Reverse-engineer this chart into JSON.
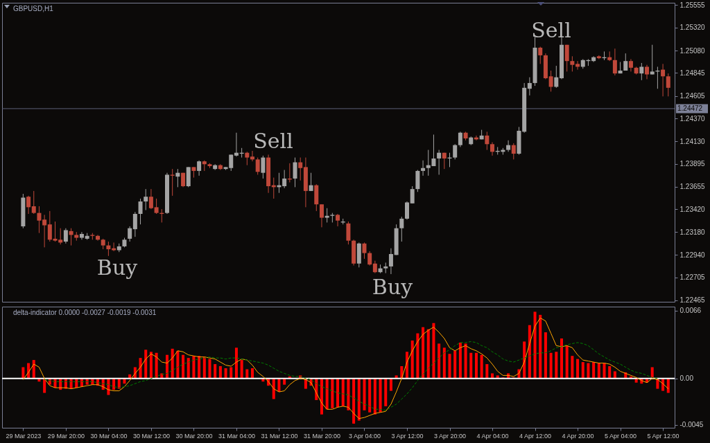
{
  "chart_data": [
    {
      "type": "candlestick",
      "title": "GBPUSD,H1",
      "ohlc": [
        [
          1.2324,
          1.2358,
          1.2322,
          1.2354
        ],
        [
          1.2355,
          1.2356,
          1.2337,
          1.2344
        ],
        [
          1.2345,
          1.2361,
          1.2337,
          1.2338
        ],
        [
          1.2338,
          1.2345,
          1.2317,
          1.233
        ],
        [
          1.2331,
          1.2336,
          1.2302,
          1.2325
        ],
        [
          1.2326,
          1.234,
          1.2308,
          1.231
        ],
        [
          1.2311,
          1.2329,
          1.2308,
          1.2309
        ],
        [
          1.231,
          1.2322,
          1.2305,
          1.2307
        ],
        [
          1.2308,
          1.2322,
          1.2306,
          1.232
        ],
        [
          1.2319,
          1.2322,
          1.2304,
          1.2315
        ],
        [
          1.2315,
          1.2318,
          1.2309,
          1.2312
        ],
        [
          1.2312,
          1.2318,
          1.231,
          1.2316
        ],
        [
          1.2311,
          1.2317,
          1.231,
          1.2314
        ],
        [
          1.2315,
          1.2317,
          1.231,
          1.2314
        ],
        [
          1.2314,
          1.2315,
          1.2309,
          1.231
        ],
        [
          1.231,
          1.2311,
          1.23,
          1.2304
        ],
        [
          1.2304,
          1.2308,
          1.2293,
          1.23
        ],
        [
          1.2301,
          1.2307,
          1.2298,
          1.2299
        ],
        [
          1.2299,
          1.2306,
          1.2297,
          1.2303
        ],
        [
          1.2303,
          1.2312,
          1.2302,
          1.231
        ],
        [
          1.2311,
          1.2324,
          1.2308,
          1.2322
        ],
        [
          1.2321,
          1.2339,
          1.2313,
          1.2337
        ],
        [
          1.2337,
          1.2353,
          1.2326,
          1.235
        ],
        [
          1.235,
          1.2363,
          1.2341,
          1.2355
        ],
        [
          1.2355,
          1.2363,
          1.2342,
          1.2343
        ],
        [
          1.2344,
          1.2353,
          1.2337,
          1.2338
        ],
        [
          1.2338,
          1.2342,
          1.2328,
          1.2337
        ],
        [
          1.2338,
          1.238,
          1.2337,
          1.2378
        ],
        [
          1.2378,
          1.2384,
          1.2356,
          1.2377
        ],
        [
          1.2376,
          1.2384,
          1.2365,
          1.238
        ],
        [
          1.238,
          1.238,
          1.2365,
          1.2366
        ],
        [
          1.2366,
          1.2386,
          1.2365,
          1.2386
        ],
        [
          1.2386,
          1.2386,
          1.2375,
          1.2382
        ],
        [
          1.2382,
          1.2393,
          1.2377,
          1.2392
        ],
        [
          1.2392,
          1.2393,
          1.2382,
          1.2389
        ],
        [
          1.2389,
          1.239,
          1.2385,
          1.2387
        ],
        [
          1.2384,
          1.2389,
          1.2383,
          1.2388
        ],
        [
          1.2388,
          1.2389,
          1.2383,
          1.2384
        ],
        [
          1.2384,
          1.2386,
          1.2383,
          1.2386
        ],
        [
          1.2385,
          1.2399,
          1.2382,
          1.2399
        ],
        [
          1.2398,
          1.2422,
          1.2397,
          1.2401
        ],
        [
          1.24,
          1.2406,
          1.2396,
          1.2401
        ],
        [
          1.2401,
          1.2402,
          1.2388,
          1.2396
        ],
        [
          1.2397,
          1.2403,
          1.2392,
          1.2394
        ],
        [
          1.2394,
          1.2396,
          1.2378,
          1.2381
        ],
        [
          1.238,
          1.2398,
          1.2374,
          1.2396
        ],
        [
          1.2396,
          1.2399,
          1.2359,
          1.2366
        ],
        [
          1.2367,
          1.2375,
          1.2353,
          1.2365
        ],
        [
          1.2365,
          1.238,
          1.2359,
          1.2367
        ],
        [
          1.2366,
          1.2383,
          1.2364,
          1.2374
        ],
        [
          1.2374,
          1.239,
          1.237,
          1.2373
        ],
        [
          1.2374,
          1.2396,
          1.2365,
          1.2391
        ],
        [
          1.2391,
          1.2396,
          1.2372,
          1.2385
        ],
        [
          1.2386,
          1.2396,
          1.2344,
          1.2361
        ],
        [
          1.2361,
          1.238,
          1.2361,
          1.2367
        ],
        [
          1.2367,
          1.2368,
          1.234,
          1.2347
        ],
        [
          1.2347,
          1.2347,
          1.2323,
          1.2333
        ],
        [
          1.2333,
          1.2343,
          1.2328,
          1.2335
        ],
        [
          1.2335,
          1.2338,
          1.2328,
          1.2336
        ],
        [
          1.2336,
          1.2337,
          1.2324,
          1.233
        ],
        [
          1.2328,
          1.2332,
          1.2326,
          1.2329
        ],
        [
          1.2327,
          1.2329,
          1.2305,
          1.2309
        ],
        [
          1.2309,
          1.231,
          1.2283,
          1.2285
        ],
        [
          1.2285,
          1.2307,
          1.2281,
          1.2306
        ],
        [
          1.2306,
          1.2307,
          1.229,
          1.2296
        ],
        [
          1.2296,
          1.2298,
          1.2283,
          1.2284
        ],
        [
          1.2285,
          1.2288,
          1.2275,
          1.2276
        ],
        [
          1.2276,
          1.2284,
          1.2275,
          1.228
        ],
        [
          1.228,
          1.2286,
          1.2275,
          1.2282
        ],
        [
          1.2282,
          1.2301,
          1.2274,
          1.2295
        ],
        [
          1.2294,
          1.2326,
          1.2294,
          1.2322
        ],
        [
          1.2322,
          1.2334,
          1.2308,
          1.2332
        ],
        [
          1.2332,
          1.235,
          1.2331,
          1.2349
        ],
        [
          1.2348,
          1.2366,
          1.2348,
          1.2363
        ],
        [
          1.2363,
          1.2383,
          1.236,
          1.2382
        ],
        [
          1.2382,
          1.2393,
          1.2377,
          1.2385
        ],
        [
          1.2385,
          1.2404,
          1.2377,
          1.2388
        ],
        [
          1.2387,
          1.242,
          1.2387,
          1.2395
        ],
        [
          1.2395,
          1.2404,
          1.2378,
          1.2401
        ],
        [
          1.2401,
          1.2401,
          1.2384,
          1.2395
        ],
        [
          1.2395,
          1.2401,
          1.2386,
          1.2396
        ],
        [
          1.2396,
          1.241,
          1.2394,
          1.2409
        ],
        [
          1.2409,
          1.2423,
          1.2407,
          1.2422
        ],
        [
          1.2422,
          1.2423,
          1.2414,
          1.2416
        ],
        [
          1.241,
          1.2418,
          1.2409,
          1.2417
        ],
        [
          1.2417,
          1.2419,
          1.2414,
          1.2415
        ],
        [
          1.2415,
          1.2425,
          1.2415,
          1.2419
        ],
        [
          1.2419,
          1.2423,
          1.2404,
          1.241
        ],
        [
          1.241,
          1.2412,
          1.2398,
          1.2402
        ],
        [
          1.2402,
          1.2407,
          1.2399,
          1.2403
        ],
        [
          1.2402,
          1.2406,
          1.2399,
          1.2404
        ],
        [
          1.2404,
          1.2414,
          1.2402,
          1.2409
        ],
        [
          1.2409,
          1.2411,
          1.2394,
          1.24
        ],
        [
          1.24,
          1.2428,
          1.2399,
          1.2424
        ],
        [
          1.2423,
          1.2474,
          1.2422,
          1.2469
        ],
        [
          1.2468,
          1.248,
          1.2461,
          1.2474
        ],
        [
          1.2474,
          1.2522,
          1.2471,
          1.2511
        ],
        [
          1.2511,
          1.2512,
          1.2494,
          1.2503
        ],
        [
          1.2503,
          1.2505,
          1.2478,
          1.2479
        ],
        [
          1.2481,
          1.2487,
          1.2465,
          1.247
        ],
        [
          1.247,
          1.2492,
          1.2469,
          1.248
        ],
        [
          1.2479,
          1.2522,
          1.2478,
          1.2514
        ],
        [
          1.2514,
          1.2514,
          1.2486,
          1.2497
        ],
        [
          1.2497,
          1.2502,
          1.2486,
          1.2493
        ],
        [
          1.2494,
          1.2497,
          1.2488,
          1.2491
        ],
        [
          1.2491,
          1.2499,
          1.2489,
          1.2498
        ],
        [
          1.2497,
          1.2499,
          1.2492,
          1.2498
        ],
        [
          1.2497,
          1.2502,
          1.2496,
          1.2501
        ],
        [
          1.2502,
          1.2503,
          1.2499,
          1.25
        ],
        [
          1.25,
          1.2507,
          1.2498,
          1.2501
        ],
        [
          1.2501,
          1.2507,
          1.2497,
          1.2498
        ],
        [
          1.2498,
          1.251,
          1.2482,
          1.2484
        ],
        [
          1.2484,
          1.2496,
          1.2484,
          1.2487
        ],
        [
          1.2487,
          1.2505,
          1.2487,
          1.2497
        ],
        [
          1.2497,
          1.2499,
          1.2486,
          1.249
        ],
        [
          1.249,
          1.2491,
          1.2483,
          1.2484
        ],
        [
          1.2484,
          1.2495,
          1.2477,
          1.2491
        ],
        [
          1.2491,
          1.2493,
          1.2478,
          1.2483
        ],
        [
          1.2483,
          1.2514,
          1.2483,
          1.2486
        ],
        [
          1.2486,
          1.2491,
          1.2468,
          1.2487
        ],
        [
          1.2488,
          1.2494,
          1.246,
          1.2481
        ],
        [
          1.2481,
          1.2484,
          1.246,
          1.2469
        ]
      ],
      "colors": [
        "#a4a4a4",
        "#c0483a",
        "#c0483a",
        "#c0483a",
        "#c0483a",
        "#c0483a",
        "#c0483a",
        "#c0483a",
        "#a4a4a4",
        "#c0483a",
        "#c0483a",
        "#a4a4a4",
        "#a4a4a4",
        "#c0483a",
        "#c0483a",
        "#c0483a",
        "#c0483a",
        "#c0483a",
        "#a4a4a4",
        "#a4a4a4",
        "#a4a4a4",
        "#a4a4a4",
        "#a4a4a4",
        "#a4a4a4",
        "#c0483a",
        "#c0483a",
        "#c0483a",
        "#a4a4a4",
        "#c0483a",
        "#a4a4a4",
        "#c0483a",
        "#a4a4a4",
        "#c0483a",
        "#a4a4a4",
        "#c0483a",
        "#c0483a",
        "#a4a4a4",
        "#c0483a",
        "#a4a4a4",
        "#a4a4a4",
        "#a4a4a4",
        "#a4a4a4",
        "#c0483a",
        "#c0483a",
        "#c0483a",
        "#a4a4a4",
        "#c0483a",
        "#c0483a",
        "#a4a4a4",
        "#a4a4a4",
        "#c0483a",
        "#a4a4a4",
        "#c0483a",
        "#c0483a",
        "#a4a4a4",
        "#c0483a",
        "#c0483a",
        "#a4a4a4",
        "#a4a4a4",
        "#c0483a",
        "#a4a4a4",
        "#c0483a",
        "#c0483a",
        "#a4a4a4",
        "#c0483a",
        "#c0483a",
        "#c0483a",
        "#a4a4a4",
        "#a4a4a4",
        "#a4a4a4",
        "#a4a4a4",
        "#a4a4a4",
        "#a4a4a4",
        "#a4a4a4",
        "#a4a4a4",
        "#a4a4a4",
        "#a4a4a4",
        "#a4a4a4",
        "#a4a4a4",
        "#c0483a",
        "#a4a4a4",
        "#a4a4a4",
        "#a4a4a4",
        "#c0483a",
        "#a4a4a4",
        "#c0483a",
        "#a4a4a4",
        "#c0483a",
        "#c0483a",
        "#a4a4a4",
        "#a4a4a4",
        "#a4a4a4",
        "#c0483a",
        "#a4a4a4",
        "#a4a4a4",
        "#a4a4a4",
        "#a4a4a4",
        "#c0483a",
        "#c0483a",
        "#c0483a",
        "#a4a4a4",
        "#a4a4a4",
        "#c0483a",
        "#c0483a",
        "#c0483a",
        "#a4a4a4",
        "#a4a4a4",
        "#a4a4a4",
        "#c0483a",
        "#a4a4a4",
        "#c0483a",
        "#c0483a",
        "#a4a4a4",
        "#a4a4a4",
        "#c0483a",
        "#c0483a",
        "#a4a4a4",
        "#c0483a",
        "#a4a4a4",
        "#a4a4a4",
        "#c0483a",
        "#c0483a"
      ],
      "ylim": [
        1.2245,
        1.2558
      ],
      "yticks": [
        1.25555,
        {
          "value": 1.2532,
          "label": "1.25320"
        },
        {
          "value": 1.2508,
          "label": "1.25080"
        },
        1.24845,
        1.24605,
        {
          "value": 1.2437,
          "label": "1.24370"
        },
        {
          "value": 1.2413,
          "label": "1.24130"
        },
        1.23895,
        1.23655,
        {
          "value": 1.2342,
          "label": "1.23420"
        },
        {
          "value": 1.2318,
          "label": "1.23180"
        },
        {
          "value": 1.2294,
          "label": "1.22940"
        },
        1.22705,
        1.22465
      ],
      "ref_lines": [
        {
          "axis": "y",
          "value": 1.24472,
          "label": "1.24472",
          "color": "#5c6078"
        }
      ],
      "annotations": [
        "Sell",
        "Sell",
        "Buy",
        "Buy"
      ],
      "tick_labels": "y"
    },
    {
      "type": "bar",
      "title": "delta-indicator 0.0000 -0.0027 -0.0019 -0.0031",
      "categories": [
        "29 Mar 2023",
        null,
        null,
        null,
        null,
        null,
        null,
        null,
        "29 Mar 20:00",
        null,
        null,
        null,
        null,
        null,
        null,
        null,
        "30 Mar 04:00",
        null,
        null,
        null,
        null,
        null,
        null,
        null,
        "30 Mar 12:00",
        null,
        null,
        null,
        null,
        null,
        null,
        null,
        "30 Mar 20:00",
        null,
        null,
        null,
        null,
        null,
        null,
        null,
        "31 Mar 04:00",
        null,
        null,
        null,
        null,
        null,
        null,
        null,
        "31 Mar 12:00",
        null,
        null,
        null,
        null,
        null,
        null,
        null,
        "31 Mar 20:00",
        null,
        null,
        null,
        null,
        null,
        null,
        null,
        "3 Apr 04:00",
        null,
        null,
        null,
        null,
        null,
        null,
        null,
        "3 Apr 12:00",
        null,
        null,
        null,
        null,
        null,
        null,
        null,
        "3 Apr 20:00",
        null,
        null,
        null,
        null,
        null,
        null,
        null,
        "4 Apr 04:00",
        null,
        null,
        null,
        null,
        null,
        null,
        null,
        "4 Apr 12:00",
        null,
        null,
        null,
        null,
        null,
        null,
        null,
        "4 Apr 20:00",
        null,
        null,
        null,
        null,
        null,
        null,
        null,
        "5 Apr 04:00",
        null,
        null,
        null,
        null,
        null,
        null,
        null,
        "5 Apr 12:00",
        null
      ],
      "series": [
        {
          "type": "bar",
          "color": "#ff0000",
          "values": [
            0.0011,
            0.0015,
            0.0018,
            -0.0003,
            -0.0014,
            -0.0006,
            -0.0009,
            -0.0011,
            -0.001,
            -0.001,
            -0.0009,
            -0.0008,
            -0.0006,
            -0.0006,
            -0.0007,
            -0.0011,
            -0.0016,
            -0.0011,
            -0.001,
            -0.0005,
            0.0004,
            0.0011,
            0.002,
            0.0028,
            0.0026,
            0.0025,
            0.0005,
            0.0023,
            0.0029,
            0.0027,
            0.0023,
            0.002,
            0.0022,
            0.0022,
            0.0021,
            0.0019,
            0.0014,
            0.0012,
            0.001,
            0.0011,
            0.003,
            0.0018,
            0.0009,
            0.001,
            null,
            -0.0003,
            -0.0007,
            -0.002,
            -0.0013,
            -0.0006,
            0.0002,
            0.0,
            0.0003,
            -0.001,
            -0.0007,
            -0.0021,
            -0.0035,
            -0.003,
            -0.0029,
            -0.0028,
            -0.0027,
            -0.0031,
            -0.0044,
            -0.0041,
            -0.0031,
            -0.0033,
            -0.0035,
            -0.0033,
            -0.0027,
            -0.0012,
            0.0003,
            0.0012,
            0.0026,
            0.0037,
            0.0044,
            0.005,
            0.0048,
            0.0054,
            0.0034,
            0.003,
            0.0024,
            0.0027,
            0.0035,
            0.0034,
            0.0025,
            0.0025,
            0.0023,
            0.0014,
            0.0005,
            0.0003,
            0.0001,
            0.0005,
            0.0001,
            0.0009,
            0.0036,
            0.0052,
            0.0065,
            0.0062,
            0.0045,
            0.0025,
            0.0026,
            0.0039,
            0.0032,
            0.0022,
            0.0019,
            0.0016,
            0.0015,
            0.0016,
            0.0015,
            0.0015,
            0.0012,
            0.0007,
            0.0,
            0.0006,
            0.0002,
            -0.0004,
            -0.0005,
            -0.0004,
            0.0011,
            -0.001,
            -0.0012,
            -0.0014
          ]
        },
        {
          "type": "line",
          "color": "#ffa500",
          "values": [
            -0.0001,
            0.0006,
            0.0014,
            0.0011,
            0.0,
            -0.0007,
            -0.0009,
            -0.0009,
            -0.0009,
            -0.001,
            -0.0009,
            -0.0008,
            -0.0007,
            -0.0006,
            -0.0006,
            -0.0008,
            -0.0011,
            -0.0012,
            -0.0012,
            -0.0008,
            -0.0002,
            0.0005,
            0.0011,
            0.0019,
            0.0024,
            0.0021,
            0.0016,
            0.0015,
            0.002,
            0.0027,
            0.0026,
            0.0023,
            0.0022,
            0.0021,
            0.0021,
            0.002,
            0.0019,
            0.0016,
            0.0013,
            0.0012,
            0.0016,
            0.0019,
            0.0018,
            0.0013,
            0.0006,
            0.0002,
            -0.0003,
            -0.001,
            -0.0013,
            -0.0012,
            -0.0006,
            -0.0002,
            0.0,
            -0.0001,
            -0.0004,
            -0.0014,
            -0.0024,
            -0.003,
            -0.003,
            -0.0028,
            -0.0027,
            -0.0028,
            -0.0034,
            -0.0039,
            -0.0038,
            -0.0036,
            -0.0034,
            -0.0033,
            -0.0032,
            -0.0025,
            -0.0013,
            0.0,
            0.0016,
            0.0027,
            0.0036,
            0.0043,
            0.0047,
            0.005,
            0.0045,
            0.0039,
            0.003,
            0.0027,
            0.003,
            0.0032,
            0.0029,
            0.0027,
            0.0024,
            0.002,
            0.0014,
            0.0007,
            0.0003,
            0.0003,
            0.0002,
            0.0005,
            0.0016,
            0.0034,
            0.0051,
            0.0059,
            0.0056,
            0.0044,
            0.0032,
            0.0031,
            0.0032,
            0.003,
            0.0023,
            0.0018,
            0.0017,
            0.0016,
            0.0015,
            0.0015,
            0.0014,
            0.0011,
            0.0007,
            0.0005,
            0.0003,
            0.0001,
            -0.0002,
            -0.0004,
            0.0,
            -0.0001,
            -0.0005,
            -0.001
          ]
        },
        {
          "type": "line",
          "color": "#008000",
          "line_style": "dashed",
          "values": [
            null,
            null,
            null,
            null,
            -0.0001,
            -0.0002,
            -0.0003,
            -0.0003,
            -0.0003,
            -0.0003,
            -0.0003,
            -0.0003,
            -0.0003,
            -0.0003,
            -0.0004,
            -0.0005,
            -0.0006,
            -0.0008,
            -0.0009,
            -0.0008,
            -0.0007,
            -0.0005,
            -0.0003,
            -0.0002,
            0.0,
            0.0002,
            0.0004,
            0.0005,
            0.0008,
            0.0011,
            0.0014,
            0.0016,
            0.0018,
            0.0019,
            0.002,
            0.0021,
            0.002,
            0.002,
            0.0019,
            0.002,
            0.002,
            0.0019,
            0.0018,
            0.0017,
            0.0016,
            0.0015,
            0.0013,
            0.001,
            0.0007,
            0.0005,
            0.0003,
            0.0002,
            0.0002,
            0.0,
            -0.0001,
            -0.0005,
            -0.0008,
            -0.001,
            -0.0012,
            -0.0014,
            -0.0015,
            -0.0016,
            -0.0019,
            -0.0022,
            -0.0025,
            -0.0027,
            -0.003,
            -0.003,
            -0.0031,
            -0.0028,
            -0.0025,
            -0.002,
            -0.0015,
            -0.0009,
            -0.0002,
            0.0004,
            0.001,
            0.0015,
            0.002,
            0.0025,
            0.0028,
            0.0032,
            0.0035,
            0.0035,
            0.0036,
            0.0035,
            0.0032,
            0.003,
            0.0026,
            0.0023,
            0.0019,
            0.0017,
            0.0016,
            0.0018,
            0.002,
            0.0022,
            0.0024,
            0.0025,
            0.0025,
            0.0027,
            0.003,
            0.0031,
            0.0033,
            0.0034,
            0.0035,
            0.0034,
            0.0032,
            0.0028,
            0.0024,
            0.0021,
            0.0018,
            0.0016,
            0.0014,
            0.0011,
            0.0008,
            0.0006,
            0.0005,
            0.0003,
            0.0001,
            0.0,
            null,
            null
          ]
        }
      ],
      "ylim": [
        -0.0048,
        0.007
      ],
      "yticks": [
        0.0066,
        {
          "value": 0,
          "label": "0.00"
        },
        -0.0045
      ],
      "ref_lines": [
        {
          "axis": "y",
          "value": 0,
          "color": "#ffffff"
        }
      ]
    }
  ]
}
